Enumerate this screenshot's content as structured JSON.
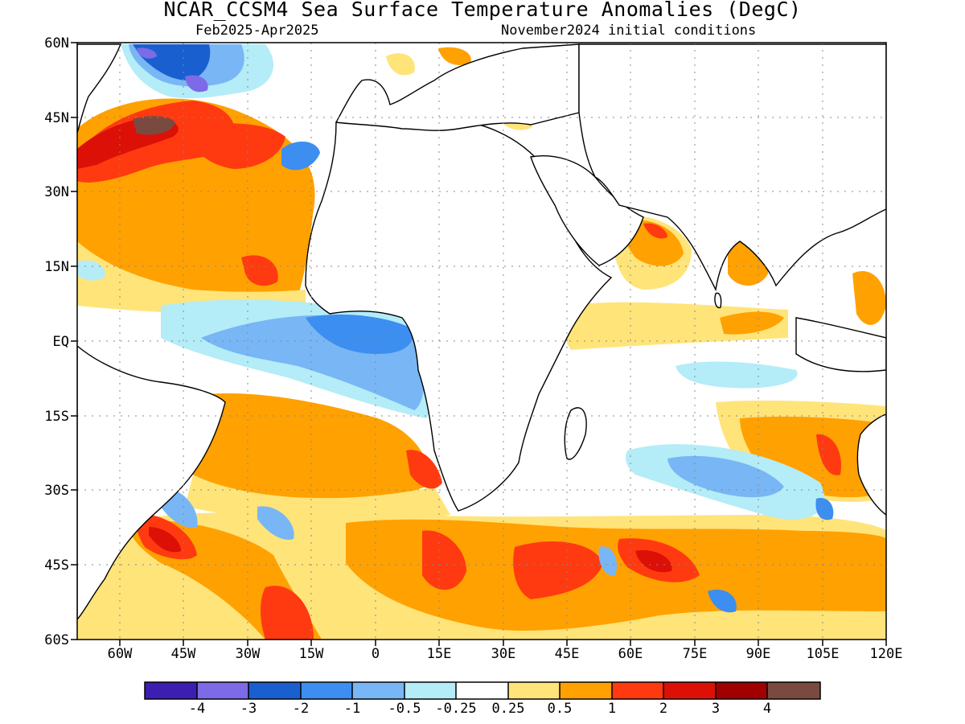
{
  "title": "NCAR_CCSM4 Sea Surface Temperature Anomalies (DegC)",
  "subtitle_left": "Feb2025-Apr2025",
  "subtitle_right": "November2024 initial conditions",
  "lat_labels": [
    "60N",
    "45N",
    "30N",
    "15N",
    "EQ",
    "15S",
    "30S",
    "45S",
    "60S"
  ],
  "lon_labels": [
    "60W",
    "45W",
    "30W",
    "15W",
    "0",
    "15E",
    "30E",
    "45E",
    "60E",
    "75E",
    "90E",
    "105E",
    "120E"
  ],
  "colorbar": {
    "colors": [
      "#3c1fb0",
      "#7d6ae6",
      "#1a5fd0",
      "#3c8ef0",
      "#78b6f5",
      "#b4ecf8",
      "#ffffff",
      "#ffe47a",
      "#ffa100",
      "#ff3a10",
      "#dc1006",
      "#a00000",
      "#7a4a40"
    ],
    "labels": [
      "-4",
      "-3",
      "-2",
      "-1",
      "-0.5",
      "-0.25",
      "0.25",
      "0.5",
      "1",
      "2",
      "3",
      "4"
    ]
  },
  "map_extent": {
    "lon_min": -70,
    "lon_max": 120,
    "lat_min": -60,
    "lat_max": 60
  }
}
